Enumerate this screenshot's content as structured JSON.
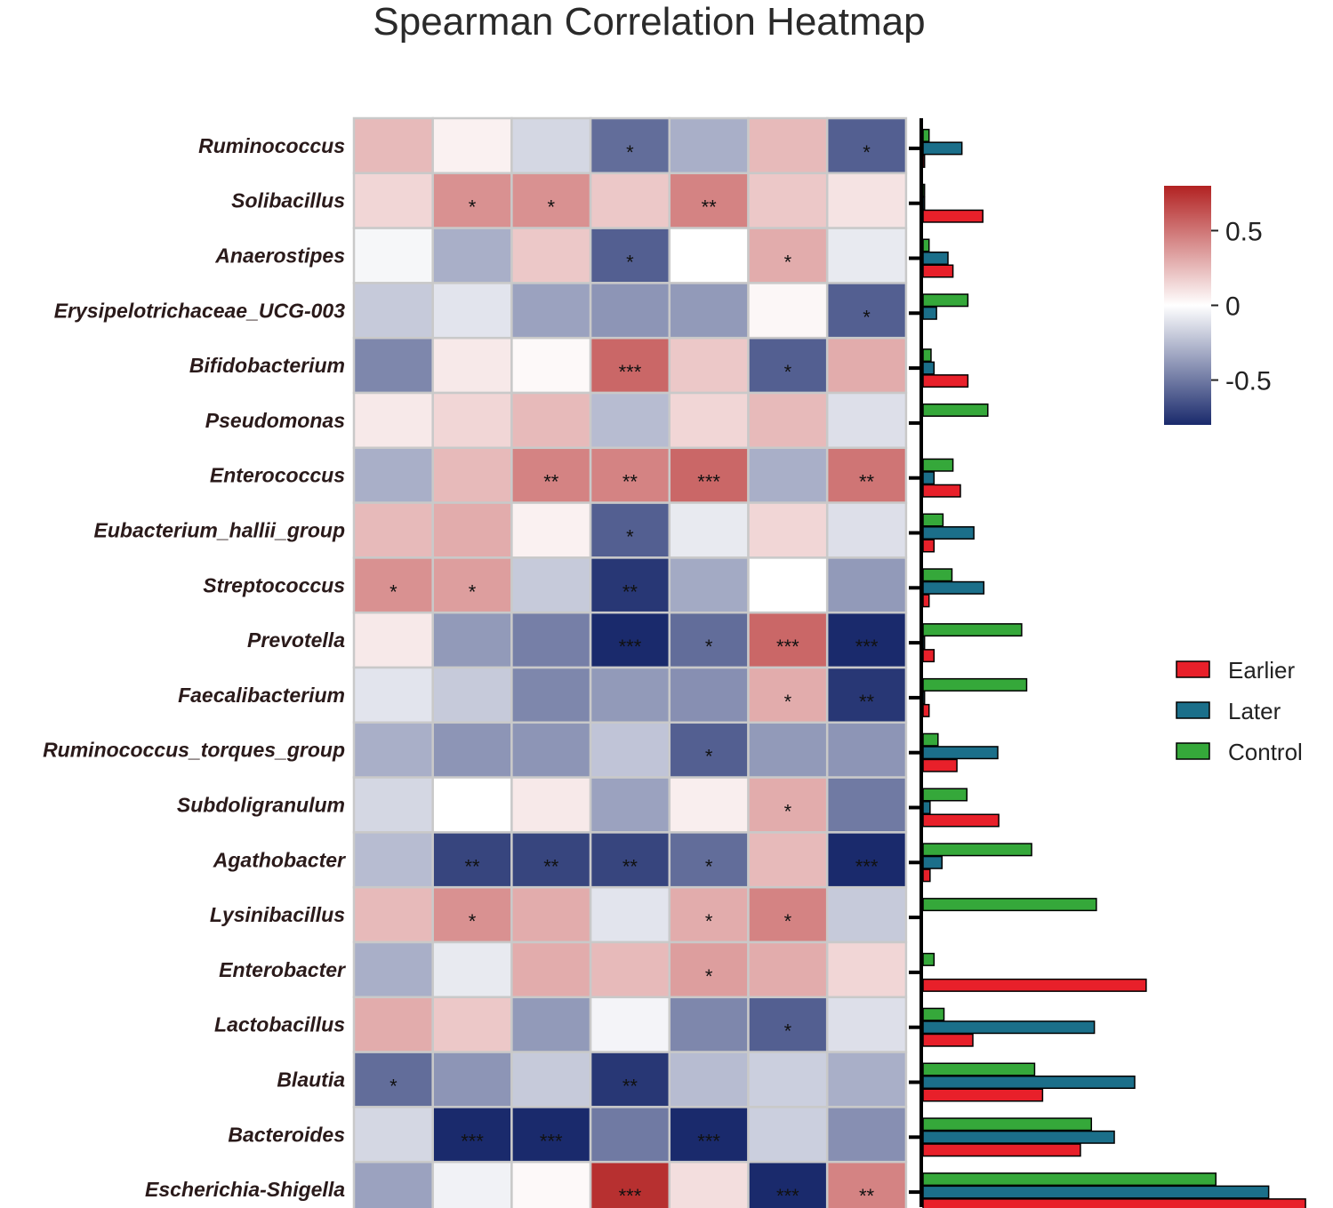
{
  "chart_data": {
    "type": "heatmap",
    "title": "Spearman Correlation Heatmap",
    "rows": [
      "Ruminococcus",
      "Solibacillus",
      "Anaerostipes",
      "Erysipelotrichaceae_UCG-003",
      "Bifidobacterium",
      "Pseudomonas",
      "Enterococcus",
      "Eubacterium_hallii_group",
      "Streptococcus",
      "Prevotella",
      "Faecalibacterium",
      "Ruminococcus_torques_group",
      "Subdoligranulum",
      "Agathobacter",
      "Lysinibacillus",
      "Enterobacter",
      "Lactobacillus",
      "Blautia",
      "Bacteroides",
      "Escherichia-Shigella"
    ],
    "columns": 7,
    "values": [
      [
        0.25,
        0.05,
        -0.15,
        -0.55,
        -0.3,
        0.25,
        -0.6
      ],
      [
        0.15,
        0.4,
        0.4,
        0.2,
        0.45,
        0.2,
        0.1
      ],
      [
        -0.03,
        -0.3,
        0.2,
        -0.6,
        0.0,
        0.3,
        -0.08
      ],
      [
        -0.2,
        -0.1,
        -0.35,
        -0.4,
        -0.38,
        0.03,
        -0.6
      ],
      [
        -0.45,
        0.08,
        0.02,
        0.55,
        0.2,
        -0.6,
        0.3
      ],
      [
        0.08,
        0.15,
        0.25,
        -0.25,
        0.15,
        0.25,
        -0.12
      ],
      [
        -0.3,
        0.25,
        0.45,
        0.45,
        0.55,
        -0.3,
        0.5
      ],
      [
        0.25,
        0.3,
        0.05,
        -0.6,
        -0.08,
        0.15,
        -0.12
      ],
      [
        0.4,
        0.35,
        -0.2,
        -0.75,
        -0.32,
        0.0,
        -0.38
      ],
      [
        0.08,
        -0.38,
        -0.48,
        -0.85,
        -0.55,
        0.55,
        -0.9
      ],
      [
        -0.1,
        -0.2,
        -0.45,
        -0.38,
        -0.42,
        0.3,
        -0.75
      ],
      [
        -0.3,
        -0.4,
        -0.4,
        -0.22,
        -0.6,
        -0.38,
        -0.4
      ],
      [
        -0.15,
        0.0,
        0.08,
        -0.35,
        0.06,
        0.3,
        -0.5
      ],
      [
        -0.25,
        -0.7,
        -0.7,
        -0.7,
        -0.55,
        0.25,
        -0.8
      ],
      [
        0.25,
        0.4,
        0.3,
        -0.1,
        0.3,
        0.45,
        -0.2
      ],
      [
        -0.3,
        -0.08,
        0.3,
        0.25,
        0.35,
        0.3,
        0.15
      ],
      [
        0.3,
        0.2,
        -0.38,
        -0.04,
        -0.45,
        -0.6,
        -0.12
      ],
      [
        -0.55,
        -0.4,
        -0.2,
        -0.75,
        -0.25,
        -0.18,
        -0.3
      ],
      [
        -0.15,
        -0.8,
        -0.85,
        -0.5,
        -0.9,
        -0.18,
        -0.42
      ],
      [
        -0.35,
        -0.05,
        0.02,
        0.75,
        0.12,
        -0.9,
        0.45
      ]
    ],
    "significance": [
      [
        "",
        "",
        "",
        "*",
        "",
        "",
        "*"
      ],
      [
        "",
        "*",
        "*",
        "",
        "**",
        "",
        ""
      ],
      [
        "",
        "",
        "",
        "*",
        "",
        "*",
        ""
      ],
      [
        "",
        "",
        "",
        "",
        "",
        "",
        "*"
      ],
      [
        "",
        "",
        "",
        "***",
        "",
        "*",
        ""
      ],
      [
        "",
        "",
        "",
        "",
        "",
        "",
        ""
      ],
      [
        "",
        "",
        "**",
        "**",
        "***",
        "",
        "**"
      ],
      [
        "",
        "",
        "",
        "*",
        "",
        "",
        ""
      ],
      [
        "*",
        "*",
        "",
        "**",
        "",
        "",
        ""
      ],
      [
        "",
        "",
        "",
        "***",
        "*",
        "***",
        "***"
      ],
      [
        "",
        "",
        "",
        "",
        "",
        "*",
        "**"
      ],
      [
        "",
        "",
        "",
        "",
        "*",
        "",
        ""
      ],
      [
        "",
        "",
        "",
        "",
        "",
        "*",
        ""
      ],
      [
        "",
        "**",
        "**",
        "**",
        "*",
        "",
        "***"
      ],
      [
        "",
        "*",
        "",
        "",
        "*",
        "*",
        ""
      ],
      [
        "",
        "",
        "",
        "",
        "*",
        "",
        ""
      ],
      [
        "",
        "",
        "",
        "",
        "",
        "*",
        ""
      ],
      [
        "*",
        "",
        "",
        "**",
        "",
        "",
        ""
      ],
      [
        "",
        "***",
        "***",
        "",
        "***",
        "",
        ""
      ],
      [
        "",
        "",
        "",
        "***",
        "",
        "***",
        "**"
      ]
    ],
    "colorbar": {
      "range": [
        -0.8,
        0.8
      ],
      "ticks": [
        0.5,
        0,
        -0.5
      ],
      "tick_labels": [
        "0.5",
        "0",
        "-0.5"
      ],
      "colors": [
        "#1a2a6c",
        "#ffffff",
        "#b22222"
      ]
    },
    "bar_chart": {
      "type": "bar",
      "orientation": "horizontal",
      "xlim": [
        0,
        1
      ],
      "series": [
        {
          "name": "Earlier",
          "color": "#e8202a",
          "values": [
            0.003,
            0.12,
            0.06,
            0.0,
            0.09,
            0.0,
            0.075,
            0.022,
            0.012,
            0.022,
            0.012,
            0.068,
            0.152,
            0.014,
            0.0,
            0.448,
            0.1,
            0.24,
            0.316,
            0.768
          ]
        },
        {
          "name": "Later",
          "color": "#1b6f8a",
          "values": [
            0.078,
            0.003,
            0.05,
            0.027,
            0.022,
            0.0,
            0.022,
            0.102,
            0.122,
            0.003,
            0.003,
            0.15,
            0.014,
            0.038,
            0.0,
            0.0,
            0.344,
            0.425,
            0.384,
            0.694
          ]
        },
        {
          "name": "Control",
          "color": "#35a83a",
          "values": [
            0.012,
            0.003,
            0.012,
            0.09,
            0.016,
            0.13,
            0.06,
            0.04,
            0.058,
            0.198,
            0.208,
            0.03,
            0.088,
            0.218,
            0.348,
            0.022,
            0.042,
            0.224,
            0.338,
            0.588
          ]
        }
      ]
    }
  }
}
